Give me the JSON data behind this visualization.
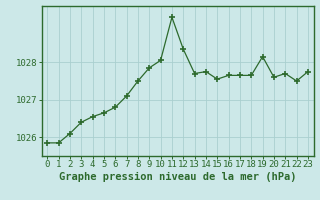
{
  "x": [
    0,
    1,
    2,
    3,
    4,
    5,
    6,
    7,
    8,
    9,
    10,
    11,
    12,
    13,
    14,
    15,
    16,
    17,
    18,
    19,
    20,
    21,
    22,
    23
  ],
  "y": [
    1025.85,
    1025.85,
    1026.1,
    1026.4,
    1026.55,
    1026.65,
    1026.8,
    1027.1,
    1027.5,
    1027.85,
    1028.05,
    1029.2,
    1028.35,
    1027.7,
    1027.75,
    1027.55,
    1027.65,
    1027.65,
    1027.65,
    1028.15,
    1027.6,
    1027.7,
    1027.5,
    1027.75
  ],
  "line_color": "#2d6a2d",
  "marker_color": "#2d6a2d",
  "bg_color": "#cce8e8",
  "grid_color": "#aacfcf",
  "axis_color": "#2d6a2d",
  "border_color": "#2d6a2d",
  "title": "Graphe pression niveau de la mer (hPa)",
  "ylim": [
    1025.5,
    1029.5
  ],
  "yticks": [
    1026,
    1027,
    1028
  ],
  "xlim": [
    -0.5,
    23.5
  ],
  "xticks": [
    0,
    1,
    2,
    3,
    4,
    5,
    6,
    7,
    8,
    9,
    10,
    11,
    12,
    13,
    14,
    15,
    16,
    17,
    18,
    19,
    20,
    21,
    22,
    23
  ],
  "title_fontsize": 7.5,
  "tick_fontsize": 6.5
}
